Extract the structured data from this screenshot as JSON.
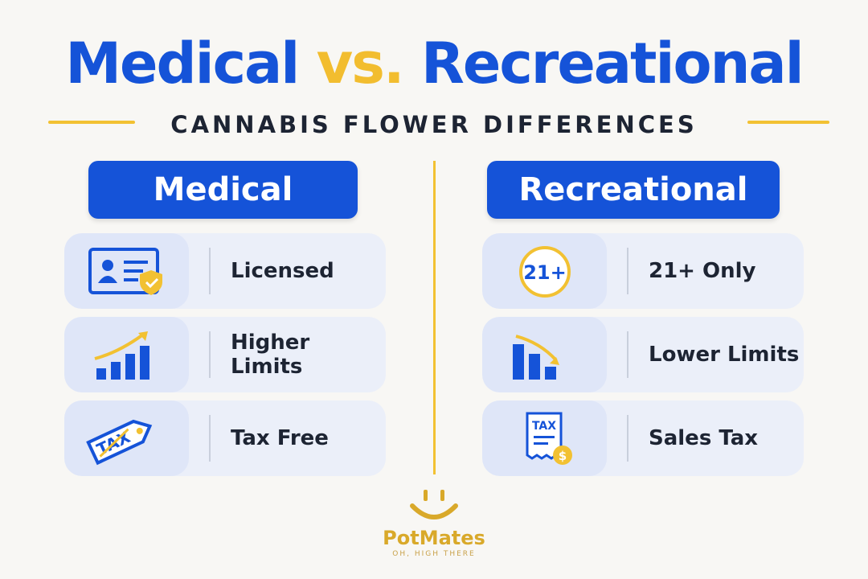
{
  "header": {
    "title_left": "Medical",
    "title_middle": "vs.",
    "title_right": "Recreational",
    "subtitle": "CANNABIS FLOWER DIFFERENCES"
  },
  "columns": [
    {
      "title": "Medical",
      "items": [
        {
          "label": "Licensed"
        },
        {
          "label": "Higher Limits"
        },
        {
          "label": "Tax Free",
          "icon_text": "TAX"
        }
      ]
    },
    {
      "title": "Recreational",
      "items": [
        {
          "label": "21+ Only",
          "icon_text": "21+"
        },
        {
          "label": "Lower Limits"
        },
        {
          "label": "Sales Tax",
          "icon_text": "TAX",
          "icon_symbol": "$"
        }
      ]
    }
  ],
  "footer": {
    "brand": "PotMates",
    "tagline": "OH, HIGH THERE"
  }
}
